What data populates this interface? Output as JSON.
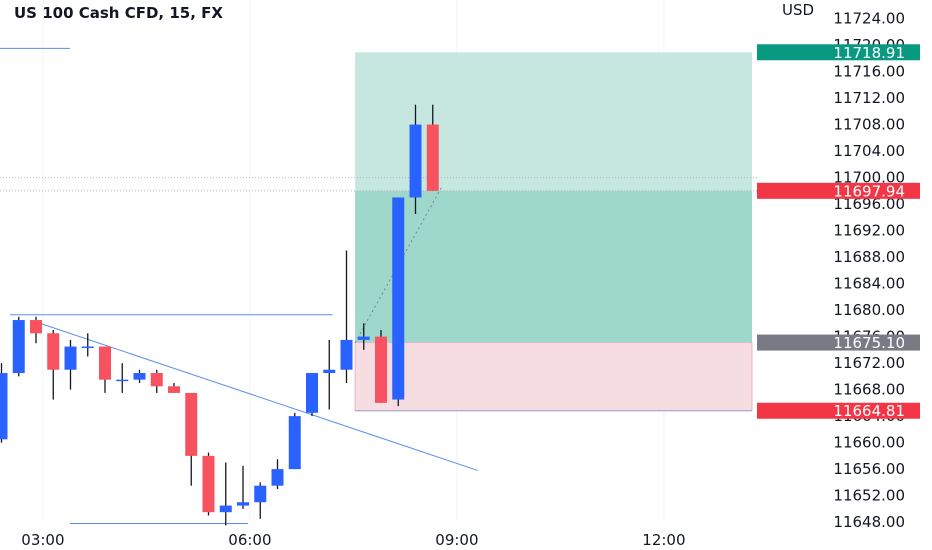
{
  "chart_data": {
    "type": "candlestick",
    "title": "US 100 Cash CFD, 15, FX",
    "currency": "USD",
    "y_range": [
      11646,
      11727
    ],
    "y_ticks": [
      11648,
      11652,
      11656,
      11660,
      11664,
      11668,
      11672,
      11676,
      11680,
      11684,
      11688,
      11692,
      11696,
      11700,
      11704,
      11708,
      11712,
      11716,
      11720,
      11724
    ],
    "x_ticks": [
      {
        "label": "03:00",
        "bar": 2.4
      },
      {
        "label": "06:00",
        "bar": 14.4
      },
      {
        "label": "09:00",
        "bar": 26.4
      },
      {
        "label": "12:00",
        "bar": 38.4
      }
    ],
    "candles": [
      {
        "o": 11660.5,
        "h": 11672.0,
        "l": 11660.0,
        "c": 11670.5
      },
      {
        "o": 11670.5,
        "h": 11679.0,
        "l": 11670.0,
        "c": 11678.5
      },
      {
        "o": 11678.5,
        "h": 11679.0,
        "l": 11675.0,
        "c": 11676.5
      },
      {
        "o": 11676.5,
        "h": 11677.0,
        "l": 11666.5,
        "c": 11671.0
      },
      {
        "o": 11671.0,
        "h": 11675.5,
        "l": 11668.0,
        "c": 11674.5
      },
      {
        "o": 11674.5,
        "h": 11676.5,
        "l": 11673.0,
        "c": 11674.5
      },
      {
        "o": 11674.5,
        "h": 11674.5,
        "l": 11667.5,
        "c": 11669.5
      },
      {
        "o": 11669.5,
        "h": 11672.0,
        "l": 11667.5,
        "c": 11669.5
      },
      {
        "o": 11669.5,
        "h": 11671.0,
        "l": 11669.0,
        "c": 11670.5
      },
      {
        "o": 11670.5,
        "h": 11671.0,
        "l": 11667.5,
        "c": 11668.5
      },
      {
        "o": 11668.5,
        "h": 11669.0,
        "l": 11667.5,
        "c": 11667.5
      },
      {
        "o": 11667.5,
        "h": 11667.5,
        "l": 11653.5,
        "c": 11658.0
      },
      {
        "o": 11658.0,
        "h": 11658.5,
        "l": 11649.0,
        "c": 11649.5
      },
      {
        "o": 11649.5,
        "h": 11657.0,
        "l": 11647.5,
        "c": 11650.5
      },
      {
        "o": 11650.5,
        "h": 11656.5,
        "l": 11650.0,
        "c": 11651.0
      },
      {
        "o": 11651.0,
        "h": 11654.0,
        "l": 11648.5,
        "c": 11653.5
      },
      {
        "o": 11653.5,
        "h": 11657.5,
        "l": 11653.0,
        "c": 11656.0
      },
      {
        "o": 11656.0,
        "h": 11664.5,
        "l": 11656.0,
        "c": 11664.0
      },
      {
        "o": 11664.5,
        "h": 11670.5,
        "l": 11664.0,
        "c": 11670.5
      },
      {
        "o": 11670.5,
        "h": 11675.5,
        "l": 11665.0,
        "c": 11671.0
      },
      {
        "o": 11671.0,
        "h": 11689.0,
        "l": 11669.0,
        "c": 11675.5
      },
      {
        "o": 11675.5,
        "h": 11678.0,
        "l": 11674.0,
        "c": 11676.0
      },
      {
        "o": 11676.0,
        "h": 11677.0,
        "l": 11666.0,
        "c": 11666.0
      },
      {
        "o": 11666.5,
        "h": 11697.0,
        "l": 11665.5,
        "c": 11697.0
      },
      {
        "o": 11697.0,
        "h": 11711.0,
        "l": 11694.5,
        "c": 11708.0
      },
      {
        "o": 11708.0,
        "h": 11711.0,
        "l": 11698.0,
        "c": 11698.0
      }
    ],
    "position": {
      "entry": 11675.1,
      "take_profit": 11718.91,
      "stop_loss": 11664.81
    },
    "price_labels": [
      {
        "text": "11718.91",
        "color": "#089981"
      },
      {
        "text": "11697.94",
        "color": "#F23645"
      },
      {
        "text": "11675.10",
        "color": "#787B86"
      },
      {
        "text": "11664.81",
        "color": "#F23645"
      }
    ],
    "colors": {
      "up": "#2962FF",
      "down": "#F7525F",
      "profit_zone": "#C6E7E0",
      "profit_zone_active": "#9ED8CB",
      "loss_zone": "#F6DDE2",
      "trendline": "#5B8DEF"
    }
  }
}
